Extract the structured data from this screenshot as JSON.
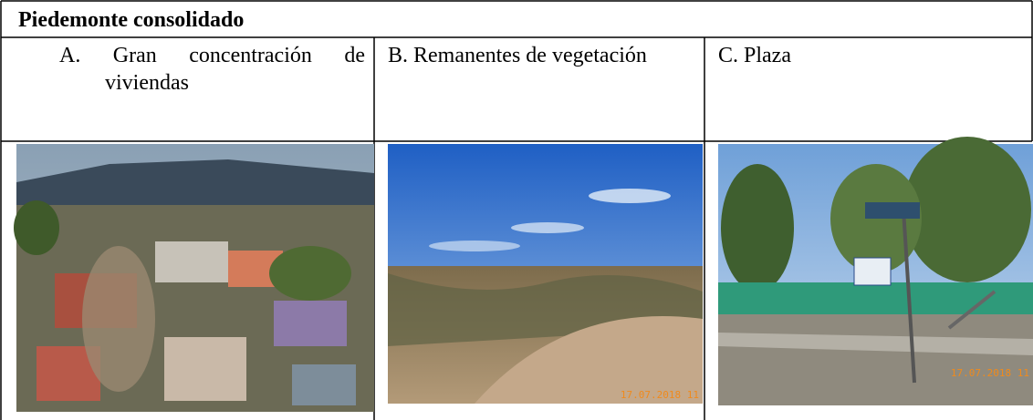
{
  "document": {
    "title": "Piedemonte consolidado",
    "columns": [
      {
        "label": "A. Gran concentración de viviendas"
      },
      {
        "label": "B. Remanentes de vegetación",
        "stamp": "17.07.2018 11"
      },
      {
        "label": "C. Plaza",
        "stamp": "17.07.2018 11"
      }
    ]
  }
}
